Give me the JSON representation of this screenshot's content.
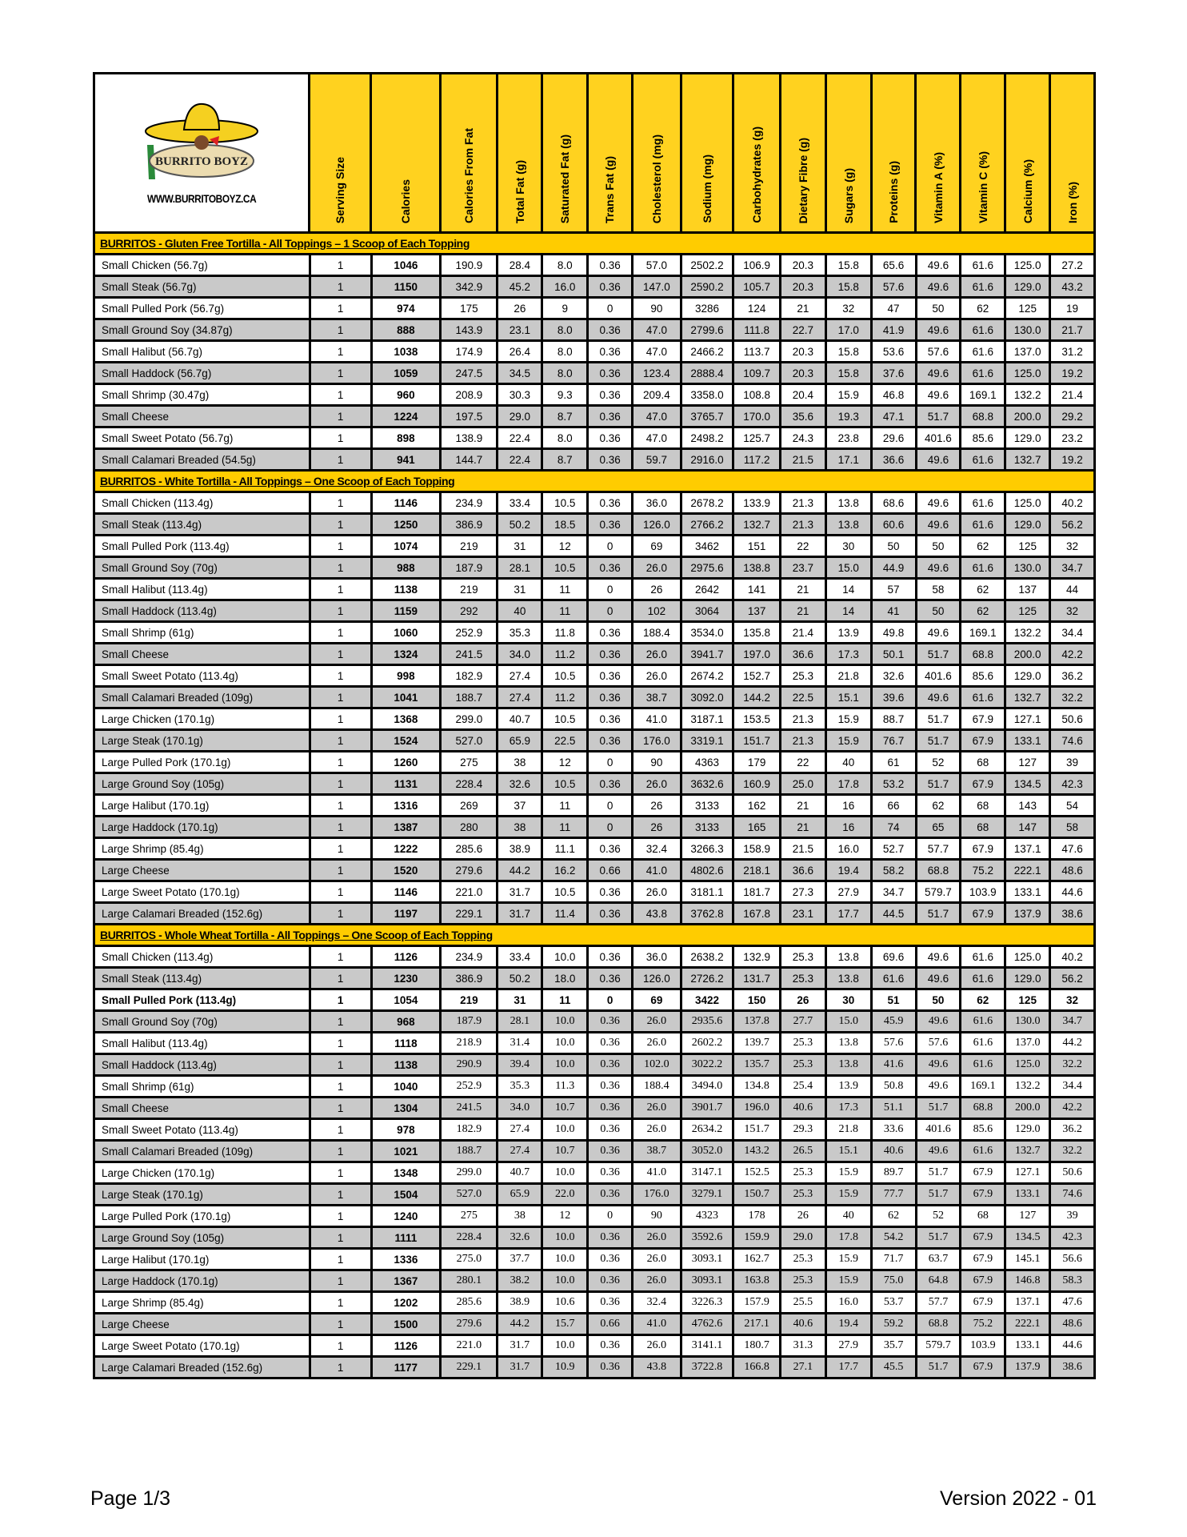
{
  "logo": {
    "brand_text": "BURRITO BOYZ",
    "url_text": "WWW.BURRITOBOYZ.CA",
    "colors": {
      "hat": "#f5d020",
      "tortilla": "#ecdcb0",
      "cactus": "#2a8a3a"
    }
  },
  "columns": [
    "Serving Size",
    "Calories",
    "Calories From Fat",
    "Total Fat (g)",
    "Saturated Fat (g)",
    "Trans Fat (g)",
    "Cholesterol (mg)",
    "Sodium (mg)",
    "Carbohydrates (g)",
    "Dietary Fibre (g)",
    "Sugars (g)",
    "Proteins (g)",
    "Vitamin A (%)",
    "Vitamin C (%)",
    "Calcium (%)",
    "Iron (%)"
  ],
  "colors": {
    "header_yellow": "#ffd21f",
    "section_yellow": "#ffcc00",
    "row_gray": "#c9c9c9"
  },
  "sections": [
    {
      "title": "BURRITOS - Gluten Free Tortilla -  All Toppings – 1 Scoop of Each Topping",
      "rows": [
        [
          "Small Chicken (56.7g)",
          "1",
          "1046",
          "190.9",
          "28.4",
          "8.0",
          "0.36",
          "57.0",
          "2502.2",
          "106.9",
          "20.3",
          "15.8",
          "65.6",
          "49.6",
          "61.6",
          "125.0",
          "27.2"
        ],
        [
          "Small Steak (56.7g)",
          "1",
          "1150",
          "342.9",
          "45.2",
          "16.0",
          "0.36",
          "147.0",
          "2590.2",
          "105.7",
          "20.3",
          "15.8",
          "57.6",
          "49.6",
          "61.6",
          "129.0",
          "43.2"
        ],
        [
          "Small Pulled Pork (56.7g)",
          "1",
          "974",
          "175",
          "26",
          "9",
          "0",
          "90",
          "3286",
          "124",
          "21",
          "32",
          "47",
          "50",
          "62",
          "125",
          "19"
        ],
        [
          "Small Ground Soy (34.87g)",
          "1",
          "888",
          "143.9",
          "23.1",
          "8.0",
          "0.36",
          "47.0",
          "2799.6",
          "111.8",
          "22.7",
          "17.0",
          "41.9",
          "49.6",
          "61.6",
          "130.0",
          "21.7"
        ],
        [
          "Small Halibut (56.7g)",
          "1",
          "1038",
          "174.9",
          "26.4",
          "8.0",
          "0.36",
          "47.0",
          "2466.2",
          "113.7",
          "20.3",
          "15.8",
          "53.6",
          "57.6",
          "61.6",
          "137.0",
          "31.2"
        ],
        [
          "Small Haddock (56.7g)",
          "1",
          "1059",
          "247.5",
          "34.5",
          "8.0",
          "0.36",
          "123.4",
          "2888.4",
          "109.7",
          "20.3",
          "15.8",
          "37.6",
          "49.6",
          "61.6",
          "125.0",
          "19.2"
        ],
        [
          "Small Shrimp (30.47g)",
          "1",
          "960",
          "208.9",
          "30.3",
          "9.3",
          "0.36",
          "209.4",
          "3358.0",
          "108.8",
          "20.4",
          "15.9",
          "46.8",
          "49.6",
          "169.1",
          "132.2",
          "21.4"
        ],
        [
          "Small Cheese",
          "1",
          "1224",
          "197.5",
          "29.0",
          "8.7",
          "0.36",
          "47.0",
          "3765.7",
          "170.0",
          "35.6",
          "19.3",
          "47.1",
          "51.7",
          "68.8",
          "200.0",
          "29.2"
        ],
        [
          "Small Sweet Potato (56.7g)",
          "1",
          "898",
          "138.9",
          "22.4",
          "8.0",
          "0.36",
          "47.0",
          "2498.2",
          "125.7",
          "24.3",
          "23.8",
          "29.6",
          "401.6",
          "85.6",
          "129.0",
          "23.2"
        ],
        [
          "Small Calamari Breaded  (54.5g)",
          "1",
          "941",
          "144.7",
          "22.4",
          "8.7",
          "0.36",
          "59.7",
          "2916.0",
          "117.2",
          "21.5",
          "17.1",
          "36.6",
          "49.6",
          "61.6",
          "132.7",
          "19.2"
        ]
      ]
    },
    {
      "title": "BURRITOS - White Tortilla -  All Toppings – One Scoop of Each Topping",
      "rows": [
        [
          "Small Chicken (113.4g)",
          "1",
          "1146",
          "234.9",
          "33.4",
          "10.5",
          "0.36",
          "36.0",
          "2678.2",
          "133.9",
          "21.3",
          "13.8",
          "68.6",
          "49.6",
          "61.6",
          "125.0",
          "40.2"
        ],
        [
          "Small Steak (113.4g)",
          "1",
          "1250",
          "386.9",
          "50.2",
          "18.5",
          "0.36",
          "126.0",
          "2766.2",
          "132.7",
          "21.3",
          "13.8",
          "60.6",
          "49.6",
          "61.6",
          "129.0",
          "56.2"
        ],
        [
          "Small Pulled Pork (113.4g)",
          "1",
          "1074",
          "219",
          "31",
          "12",
          "0",
          "69",
          "3462",
          "151",
          "22",
          "30",
          "50",
          "50",
          "62",
          "125",
          "32"
        ],
        [
          "Small Ground Soy (70g)",
          "1",
          "988",
          "187.9",
          "28.1",
          "10.5",
          "0.36",
          "26.0",
          "2975.6",
          "138.8",
          "23.7",
          "15.0",
          "44.9",
          "49.6",
          "61.6",
          "130.0",
          "34.7"
        ],
        [
          "Small Halibut (113.4g)",
          "1",
          "1138",
          "219",
          "31",
          "11",
          "0",
          "26",
          "2642",
          "141",
          "21",
          "14",
          "57",
          "58",
          "62",
          "137",
          "44"
        ],
        [
          "Small Haddock (113.4g)",
          "1",
          "1159",
          "292",
          "40",
          "11",
          "0",
          "102",
          "3064",
          "137",
          "21",
          "14",
          "41",
          "50",
          "62",
          "125",
          "32"
        ],
        [
          "Small Shrimp (61g)",
          "1",
          "1060",
          "252.9",
          "35.3",
          "11.8",
          "0.36",
          "188.4",
          "3534.0",
          "135.8",
          "21.4",
          "13.9",
          "49.8",
          "49.6",
          "169.1",
          "132.2",
          "34.4"
        ],
        [
          "Small Cheese",
          "1",
          "1324",
          "241.5",
          "34.0",
          "11.2",
          "0.36",
          "26.0",
          "3941.7",
          "197.0",
          "36.6",
          "17.3",
          "50.1",
          "51.7",
          "68.8",
          "200.0",
          "42.2"
        ],
        [
          "Small Sweet Potato (113.4g)",
          "1",
          "998",
          "182.9",
          "27.4",
          "10.5",
          "0.36",
          "26.0",
          "2674.2",
          "152.7",
          "25.3",
          "21.8",
          "32.6",
          "401.6",
          "85.6",
          "129.0",
          "36.2"
        ],
        [
          "Small Calamari Breaded (109g)",
          "1",
          "1041",
          "188.7",
          "27.4",
          "11.2",
          "0.36",
          "38.7",
          "3092.0",
          "144.2",
          "22.5",
          "15.1",
          "39.6",
          "49.6",
          "61.6",
          "132.7",
          "32.2"
        ],
        [
          "Large Chicken (170.1g)",
          "1",
          "1368",
          "299.0",
          "40.7",
          "10.5",
          "0.36",
          "41.0",
          "3187.1",
          "153.5",
          "21.3",
          "15.9",
          "88.7",
          "51.7",
          "67.9",
          "127.1",
          "50.6"
        ],
        [
          "Large Steak (170.1g)",
          "1",
          "1524",
          "527.0",
          "65.9",
          "22.5",
          "0.36",
          "176.0",
          "3319.1",
          "151.7",
          "21.3",
          "15.9",
          "76.7",
          "51.7",
          "67.9",
          "133.1",
          "74.6"
        ],
        [
          "Large Pulled Pork (170.1g)",
          "1",
          "1260",
          "275",
          "38",
          "12",
          "0",
          "90",
          "4363",
          "179",
          "22",
          "40",
          "61",
          "52",
          "68",
          "127",
          "39"
        ],
        [
          "Large Ground Soy (105g)",
          "1",
          "1131",
          "228.4",
          "32.6",
          "10.5",
          "0.36",
          "26.0",
          "3632.6",
          "160.9",
          "25.0",
          "17.8",
          "53.2",
          "51.7",
          "67.9",
          "134.5",
          "42.3"
        ],
        [
          "Large Halibut (170.1g)",
          "1",
          "1316",
          "269",
          "37",
          "11",
          "0",
          "26",
          "3133",
          "162",
          "21",
          "16",
          "66",
          "62",
          "68",
          "143",
          "54"
        ],
        [
          "Large Haddock (170.1g)",
          "1",
          "1387",
          "280",
          "38",
          "11",
          "0",
          "26",
          "3133",
          "165",
          "21",
          "16",
          "74",
          "65",
          "68",
          "147",
          "58"
        ],
        [
          "Large Shrimp (85.4g)",
          "1",
          "1222",
          "285.6",
          "38.9",
          "11.1",
          "0.36",
          "32.4",
          "3266.3",
          "158.9",
          "21.5",
          "16.0",
          "52.7",
          "57.7",
          "67.9",
          "137.1",
          "47.6"
        ],
        [
          "Large Cheese",
          "1",
          "1520",
          "279.6",
          "44.2",
          "16.2",
          "0.66",
          "41.0",
          "4802.6",
          "218.1",
          "36.6",
          "19.4",
          "58.2",
          "68.8",
          "75.2",
          "222.1",
          "48.6"
        ],
        [
          "Large Sweet Potato (170.1g)",
          "1",
          "1146",
          "221.0",
          "31.7",
          "10.5",
          "0.36",
          "26.0",
          "3181.1",
          "181.7",
          "27.3",
          "27.9",
          "34.7",
          "579.7",
          "103.9",
          "133.1",
          "44.6"
        ],
        [
          "Large Calamari Breaded  (152.6g)",
          "1",
          "1197",
          "229.1",
          "31.7",
          "11.4",
          "0.36",
          "43.8",
          "3762.8",
          "167.8",
          "23.1",
          "17.7",
          "44.5",
          "51.7",
          "67.9",
          "137.9",
          "38.6"
        ]
      ]
    },
    {
      "title": "BURRITOS - Whole Wheat Tortilla - All Toppings – One Scoop of Each Topping",
      "rows": [
        [
          "Small Chicken (113.4g)",
          "1",
          "1126",
          "234.9",
          "33.4",
          "10.0",
          "0.36",
          "36.0",
          "2638.2",
          "132.9",
          "25.3",
          "13.8",
          "69.6",
          "49.6",
          "61.6",
          "125.0",
          "40.2"
        ],
        [
          "Small Steak (113.4g)",
          "1",
          "1230",
          "386.9",
          "50.2",
          "18.0",
          "0.36",
          "126.0",
          "2726.2",
          "131.7",
          "25.3",
          "13.8",
          "61.6",
          "49.6",
          "61.6",
          "129.0",
          "56.2"
        ],
        [
          "Small Pulled Pork (113.4g)",
          "1",
          "1054",
          "219",
          "31",
          "11",
          "0",
          "69",
          "3422",
          "150",
          "26",
          "30",
          "51",
          "50",
          "62",
          "125",
          "32"
        ],
        [
          "Small Ground Soy (70g)",
          "1",
          "968",
          "187.9",
          "28.1",
          "10.0",
          "0.36",
          "26.0",
          "2935.6",
          "137.8",
          "27.7",
          "15.0",
          "45.9",
          "49.6",
          "61.6",
          "130.0",
          "34.7"
        ],
        [
          "Small Halibut (113.4g)",
          "1",
          "1118",
          "218.9",
          "31.4",
          "10.0",
          "0.36",
          "26.0",
          "2602.2",
          "139.7",
          "25.3",
          "13.8",
          "57.6",
          "57.6",
          "61.6",
          "137.0",
          "44.2"
        ],
        [
          "Small Haddock (113.4g)",
          "1",
          "1138",
          "290.9",
          "39.4",
          "10.0",
          "0.36",
          "102.0",
          "3022.2",
          "135.7",
          "25.3",
          "13.8",
          "41.6",
          "49.6",
          "61.6",
          "125.0",
          "32.2"
        ],
        [
          "Small Shrimp (61g)",
          "1",
          "1040",
          "252.9",
          "35.3",
          "11.3",
          "0.36",
          "188.4",
          "3494.0",
          "134.8",
          "25.4",
          "13.9",
          "50.8",
          "49.6",
          "169.1",
          "132.2",
          "34.4"
        ],
        [
          "Small Cheese",
          "1",
          "1304",
          "241.5",
          "34.0",
          "10.7",
          "0.36",
          "26.0",
          "3901.7",
          "196.0",
          "40.6",
          "17.3",
          "51.1",
          "51.7",
          "68.8",
          "200.0",
          "42.2"
        ],
        [
          "Small Sweet Potato (113.4g)",
          "1",
          "978",
          "182.9",
          "27.4",
          "10.0",
          "0.36",
          "26.0",
          "2634.2",
          "151.7",
          "29.3",
          "21.8",
          "33.6",
          "401.6",
          "85.6",
          "129.0",
          "36.2"
        ],
        [
          "Small Calamari Breaded (109g)",
          "1",
          "1021",
          "188.7",
          "27.4",
          "10.7",
          "0.36",
          "38.7",
          "3052.0",
          "143.2",
          "26.5",
          "15.1",
          "40.6",
          "49.6",
          "61.6",
          "132.7",
          "32.2"
        ],
        [
          "Large Chicken (170.1g)",
          "1",
          "1348",
          "299.0",
          "40.7",
          "10.0",
          "0.36",
          "41.0",
          "3147.1",
          "152.5",
          "25.3",
          "15.9",
          "89.7",
          "51.7",
          "67.9",
          "127.1",
          "50.6"
        ],
        [
          "Large Steak (170.1g)",
          "1",
          "1504",
          "527.0",
          "65.9",
          "22.0",
          "0.36",
          "176.0",
          "3279.1",
          "150.7",
          "25.3",
          "15.9",
          "77.7",
          "51.7",
          "67.9",
          "133.1",
          "74.6"
        ],
        [
          "Large Pulled Pork (170.1g)",
          "1",
          "1240",
          "275",
          "38",
          "12",
          "0",
          "90",
          "4323",
          "178",
          "26",
          "40",
          "62",
          "52",
          "68",
          "127",
          "39"
        ],
        [
          "Large Ground Soy (105g)",
          "1",
          "1111",
          "228.4",
          "32.6",
          "10.0",
          "0.36",
          "26.0",
          "3592.6",
          "159.9",
          "29.0",
          "17.8",
          "54.2",
          "51.7",
          "67.9",
          "134.5",
          "42.3"
        ],
        [
          "Large Halibut (170.1g)",
          "1",
          "1336",
          "275.0",
          "37.7",
          "10.0",
          "0.36",
          "26.0",
          "3093.1",
          "162.7",
          "25.3",
          "15.9",
          "71.7",
          "63.7",
          "67.9",
          "145.1",
          "56.6"
        ],
        [
          "Large Haddock (170.1g)",
          "1",
          "1367",
          "280.1",
          "38.2",
          "10.0",
          "0.36",
          "26.0",
          "3093.1",
          "163.8",
          "25.3",
          "15.9",
          "75.0",
          "64.8",
          "67.9",
          "146.8",
          "58.3"
        ],
        [
          "Large Shrimp (85.4g)",
          "1",
          "1202",
          "285.6",
          "38.9",
          "10.6",
          "0.36",
          "32.4",
          "3226.3",
          "157.9",
          "25.5",
          "16.0",
          "53.7",
          "57.7",
          "67.9",
          "137.1",
          "47.6"
        ],
        [
          "Large Cheese",
          "1",
          "1500",
          "279.6",
          "44.2",
          "15.7",
          "0.66",
          "41.0",
          "4762.6",
          "217.1",
          "40.6",
          "19.4",
          "59.2",
          "68.8",
          "75.2",
          "222.1",
          "48.6"
        ],
        [
          "Large Sweet Potato (170.1g)",
          "1",
          "1126",
          "221.0",
          "31.7",
          "10.0",
          "0.36",
          "26.0",
          "3141.1",
          "180.7",
          "31.3",
          "27.9",
          "35.7",
          "579.7",
          "103.9",
          "133.1",
          "44.6"
        ],
        [
          "Large Calamari Breaded  (152.6g)",
          "1",
          "1177",
          "229.1",
          "31.7",
          "10.9",
          "0.36",
          "43.8",
          "3722.8",
          "166.8",
          "27.1",
          "17.7",
          "45.5",
          "51.7",
          "67.9",
          "137.9",
          "38.6"
        ]
      ]
    }
  ],
  "footer": {
    "page": "Page 1/3",
    "version": "Version 2022 - 01"
  }
}
